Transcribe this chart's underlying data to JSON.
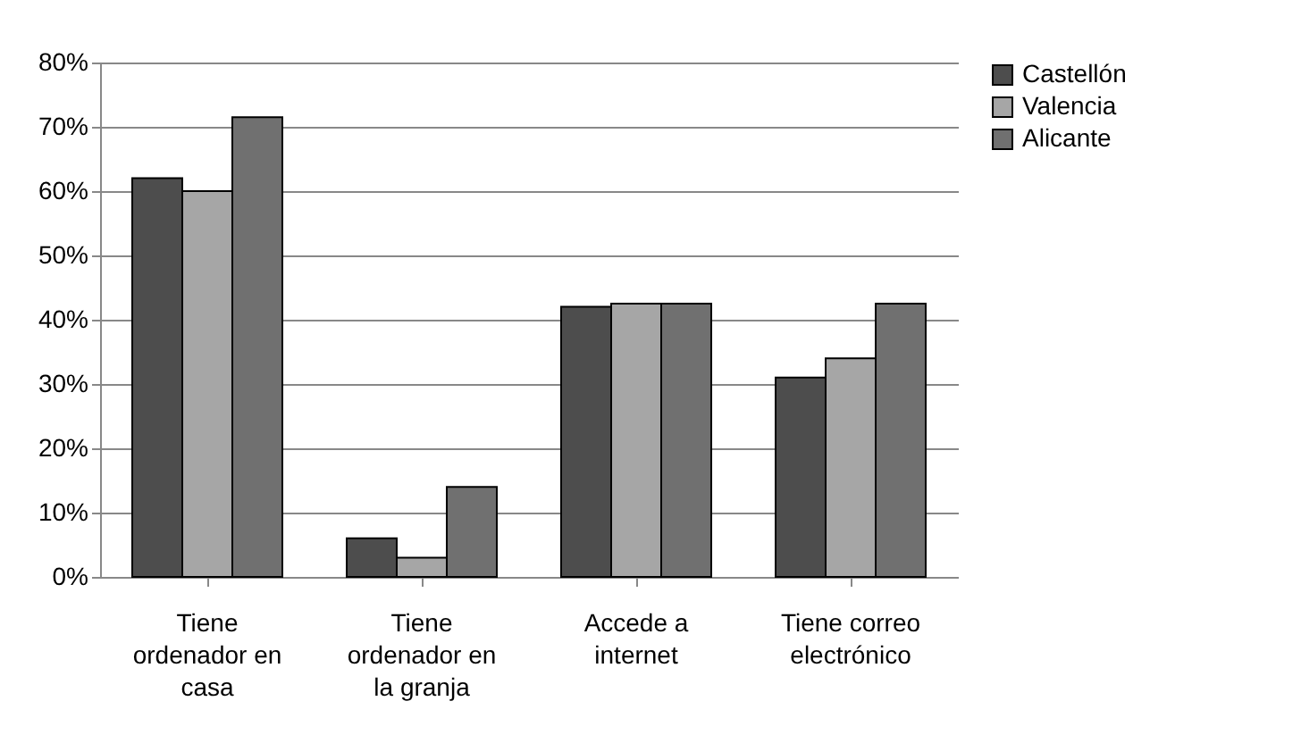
{
  "chart_data": {
    "type": "bar",
    "categories": [
      "Tiene ordenador en casa",
      "Tiene ordenador en la granja",
      "Accede a internet",
      "Tiene correo electrónico"
    ],
    "series": [
      {
        "name": "Castellón",
        "color": "#4d4d4d",
        "values": [
          62,
          6,
          42,
          31
        ]
      },
      {
        "name": "Valencia",
        "color": "#a6a6a6",
        "values": [
          60,
          3,
          42.5,
          34
        ]
      },
      {
        "name": "Alicante",
        "color": "#707070",
        "values": [
          71.5,
          14,
          42.5,
          42.5
        ]
      }
    ],
    "ylim": [
      0,
      80
    ],
    "yticks": [
      {
        "value": 0,
        "label": "0%"
      },
      {
        "value": 10,
        "label": "10%"
      },
      {
        "value": 20,
        "label": "20%"
      },
      {
        "value": 30,
        "label": "30%"
      },
      {
        "value": 40,
        "label": "40%"
      },
      {
        "value": 50,
        "label": "50%"
      },
      {
        "value": 60,
        "label": "60%"
      },
      {
        "value": 70,
        "label": "70%"
      },
      {
        "value": 80,
        "label": "80%"
      }
    ],
    "grid": "y",
    "legend": "right"
  }
}
